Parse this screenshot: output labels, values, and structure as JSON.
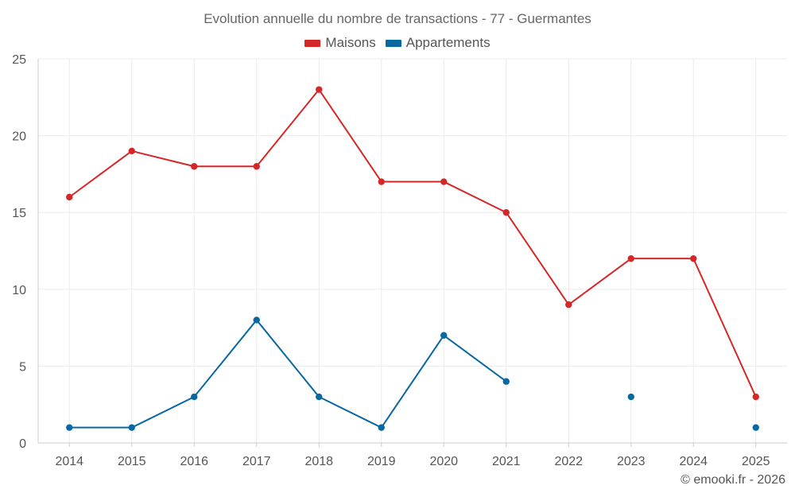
{
  "chart_data": {
    "type": "line",
    "title": "Evolution annuelle du nombre de transactions - 77 - Guermantes",
    "categories": [
      "2014",
      "2015",
      "2016",
      "2017",
      "2018",
      "2019",
      "2020",
      "2021",
      "2022",
      "2023",
      "2024",
      "2025"
    ],
    "yticks": [
      "0",
      "5",
      "10",
      "15",
      "20",
      "25"
    ],
    "ylim": [
      0,
      25
    ],
    "grid": true,
    "legend_position": "top-center",
    "series": [
      {
        "name": "Maisons",
        "color": "#d62728",
        "values": [
          16,
          19,
          18,
          18,
          23,
          17,
          17,
          15,
          9,
          12,
          12,
          3
        ]
      },
      {
        "name": "Appartements",
        "color": "#0868a1",
        "values": [
          1,
          1,
          3,
          8,
          3,
          1,
          7,
          4,
          null,
          3,
          null,
          1
        ]
      }
    ]
  },
  "credit": "© emooki.fr - 2026"
}
